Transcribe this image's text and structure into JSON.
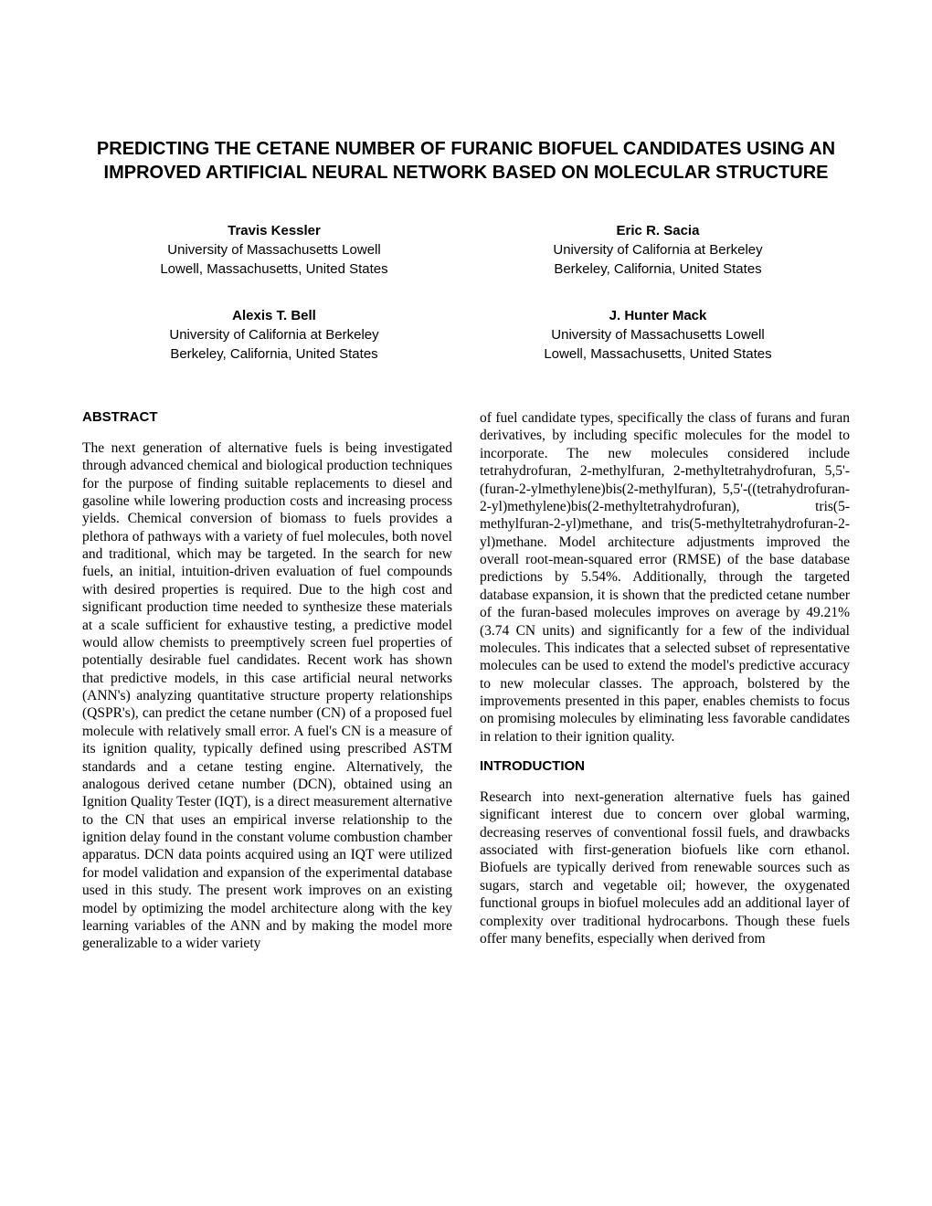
{
  "title": "PREDICTING THE CETANE NUMBER OF FURANIC BIOFUEL CANDIDATES USING AN IMPROVED ARTIFICIAL NEURAL NETWORK BASED ON MOLECULAR STRUCTURE",
  "authors": [
    {
      "name": "Travis Kessler",
      "affil": "University of Massachusetts Lowell",
      "loc": "Lowell, Massachusetts, United States"
    },
    {
      "name": "Eric R. Sacia",
      "affil": "University of California at Berkeley",
      "loc": "Berkeley, California, United States"
    },
    {
      "name": "Alexis T. Bell",
      "affil": "University of California at Berkeley",
      "loc": "Berkeley, California, United States"
    },
    {
      "name": "J. Hunter Mack",
      "affil": "University of Massachusetts Lowell",
      "loc": "Lowell, Massachusetts, United States"
    }
  ],
  "headings": {
    "abstract": "ABSTRACT",
    "introduction": "INTRODUCTION"
  },
  "abstract_p1": "The next generation of alternative fuels is being investigated through advanced chemical and biological production techniques for the purpose of finding suitable replacements to diesel and gasoline while lowering production costs and increasing process yields. Chemical conversion of biomass to fuels provides a plethora of pathways with a variety of fuel molecules, both novel and traditional, which may be targeted. In the search for new fuels, an initial, intuition-driven evaluation of fuel compounds with desired properties is required. Due to the high cost and significant production time needed to synthesize these materials at a scale sufficient for exhaustive testing, a predictive model would allow chemists to preemptively screen fuel properties of potentially desirable fuel candidates. Recent work has shown that predictive models, in this case artificial neural networks (ANN's) analyzing quantitative structure property relationships (QSPR's), can predict the cetane number (CN) of a proposed fuel molecule with relatively small error. A fuel's CN is a measure of its ignition quality, typically defined using prescribed ASTM standards and a cetane testing engine. Alternatively, the analogous derived cetane number (DCN), obtained using an Ignition Quality Tester (IQT), is a direct measurement alternative to the CN that uses an empirical inverse relationship to the ignition delay found in the constant volume combustion chamber apparatus.  DCN data points acquired using an IQT were utilized for model validation and expansion of the experimental database used in this study. The present work improves on an existing model by optimizing the model architecture along with the key learning variables of the ANN and by making the model more generalizable to a wider variety",
  "abstract_p2": "of fuel candidate types, specifically the class of furans and furan derivatives, by including specific molecules for the model to incorporate. The new molecules considered include tetrahydrofuran, 2-methylfuran, 2-methyltetrahydrofuran, 5,5'-(furan-2-ylmethylene)bis(2-methylfuran), 5,5'-((tetrahydrofuran-2-yl)methylene)bis(2-methyltetrahydrofuran), tris(5-methylfuran-2-yl)methane, and tris(5-methyltetrahydrofuran-2-yl)methane. Model architecture adjustments improved the overall root-mean-squared error (RMSE) of the base database predictions by 5.54%. Additionally, through the targeted database expansion, it is shown that the predicted cetane number of the furan-based molecules improves on average by 49.21% (3.74 CN units) and significantly for a few of the individual molecules. This indicates that a selected subset of representative molecules can be used to extend the model's predictive accuracy to new molecular classes. The approach, bolstered by the improvements presented in this paper, enables chemists to focus on promising molecules by eliminating less favorable candidates in relation to their ignition quality.",
  "intro_p1": "Research into next-generation alternative fuels has gained significant interest due to concern over global warming, decreasing reserves of conventional fossil fuels, and drawbacks associated with first-generation biofuels like corn ethanol. Biofuels are typically derived from renewable sources such as sugars, starch and vegetable oil; however, the oxygenated functional groups in biofuel molecules add an additional layer of complexity over traditional hydrocarbons. Though these fuels offer many benefits, especially when derived from"
}
